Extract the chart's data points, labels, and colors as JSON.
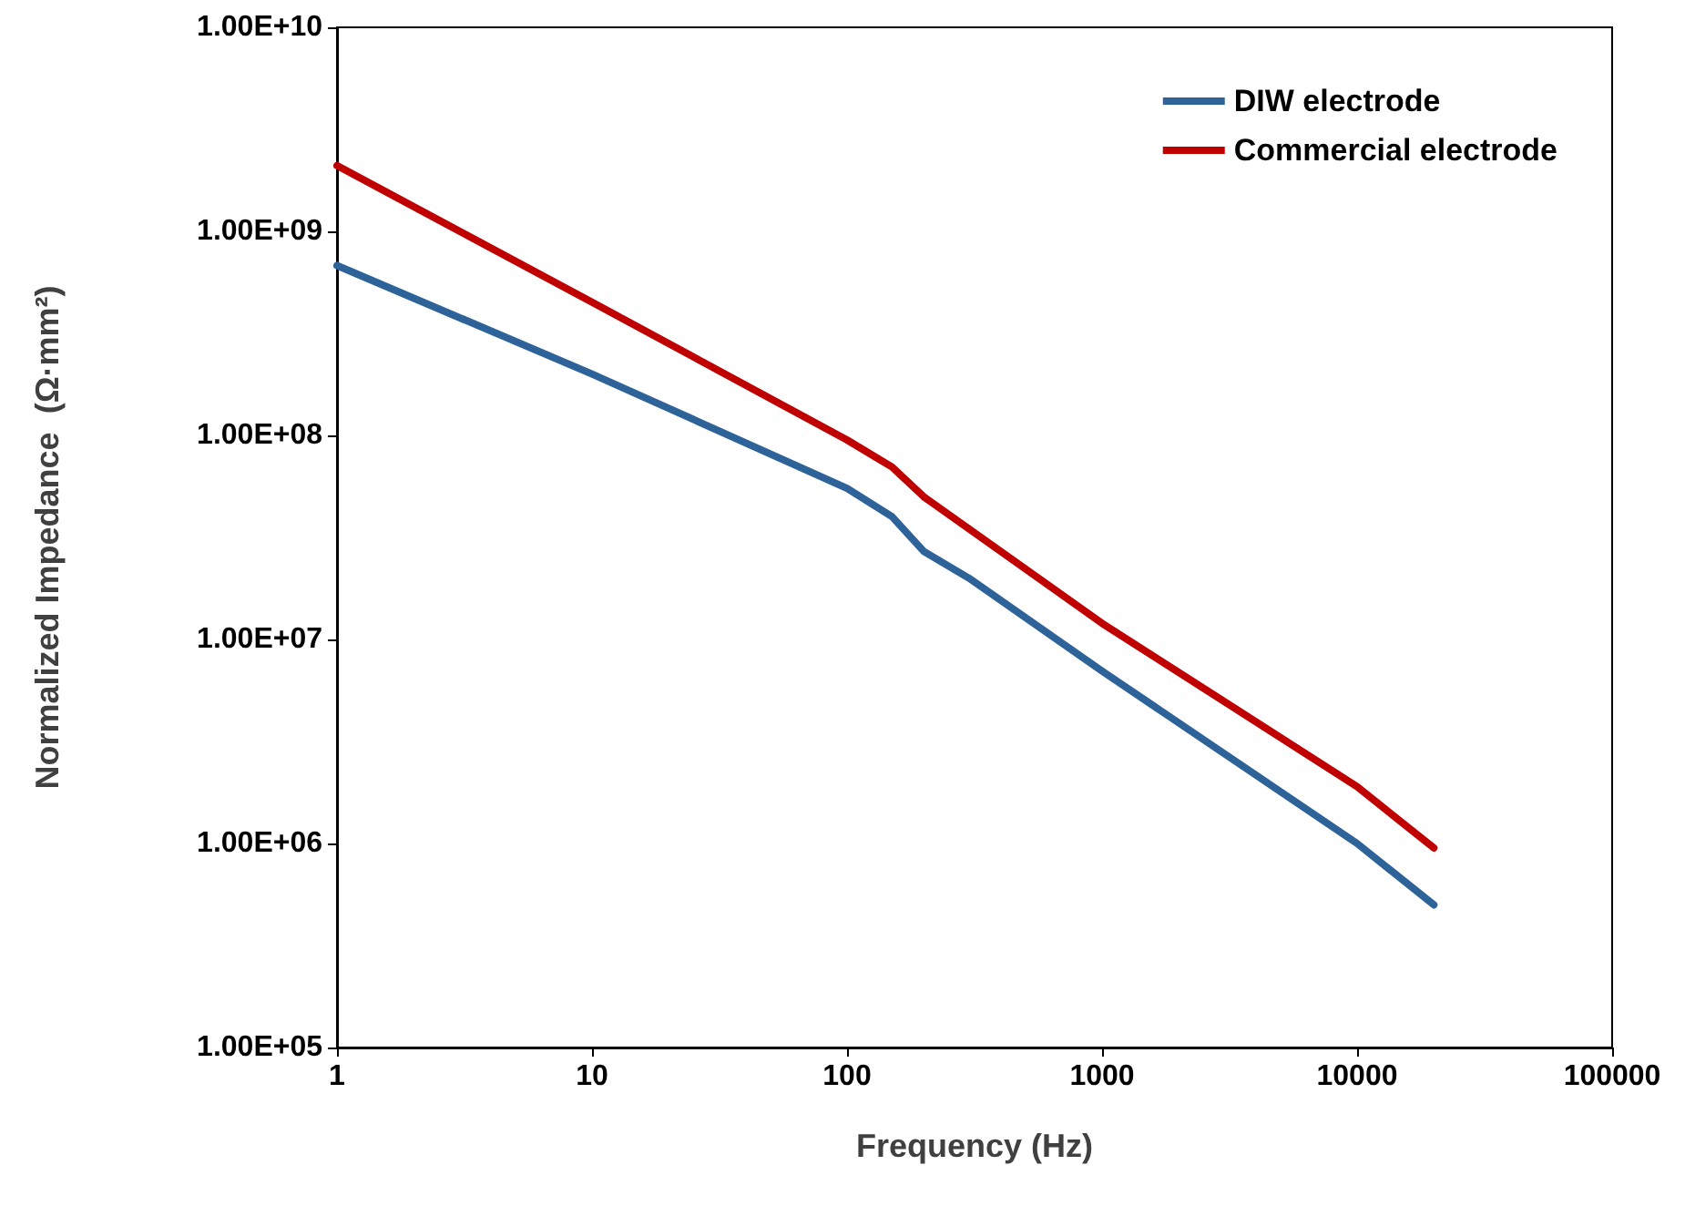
{
  "chart_data": {
    "type": "line",
    "xlabel": "Frequency (Hz)",
    "ylabel": "Normalized Impedance  (Ω·mm²)",
    "log": "xy",
    "grid": false,
    "legend": "top right",
    "marker": "none",
    "line_style": "solid",
    "xlim": [
      1,
      100000
    ],
    "xticks": [
      1,
      10,
      100,
      1000,
      10000,
      100000
    ],
    "ylim": [
      100000,
      10000000000
    ],
    "yticks": [
      {
        "value": 100000,
        "label": "1.00E+05"
      },
      {
        "value": 1000000,
        "label": "1.00E+06"
      },
      {
        "value": 10000000,
        "label": "1.00E+07"
      },
      {
        "value": 100000000,
        "label": "1.00E+08"
      },
      {
        "value": 1000000000,
        "label": "1.00E+09"
      },
      {
        "value": 10000000000,
        "label": "1.00E+10"
      }
    ],
    "series": [
      {
        "name": "DIW electrode",
        "color": "#2e6399",
        "x": [
          1,
          10,
          100,
          150,
          200,
          300,
          1000,
          10000,
          20000
        ],
        "values": [
          680000000,
          200000000,
          55000000,
          40000000,
          27000000,
          20000000,
          7000000,
          1000000,
          500000
        ]
      },
      {
        "name": "Commercial electrode",
        "color": "#c00000",
        "x": [
          1,
          10,
          100,
          150,
          200,
          1000,
          10000,
          20000
        ],
        "values": [
          2100000000,
          450000000,
          95000000,
          70000000,
          50000000,
          12000000,
          1900000,
          950000
        ]
      }
    ]
  }
}
